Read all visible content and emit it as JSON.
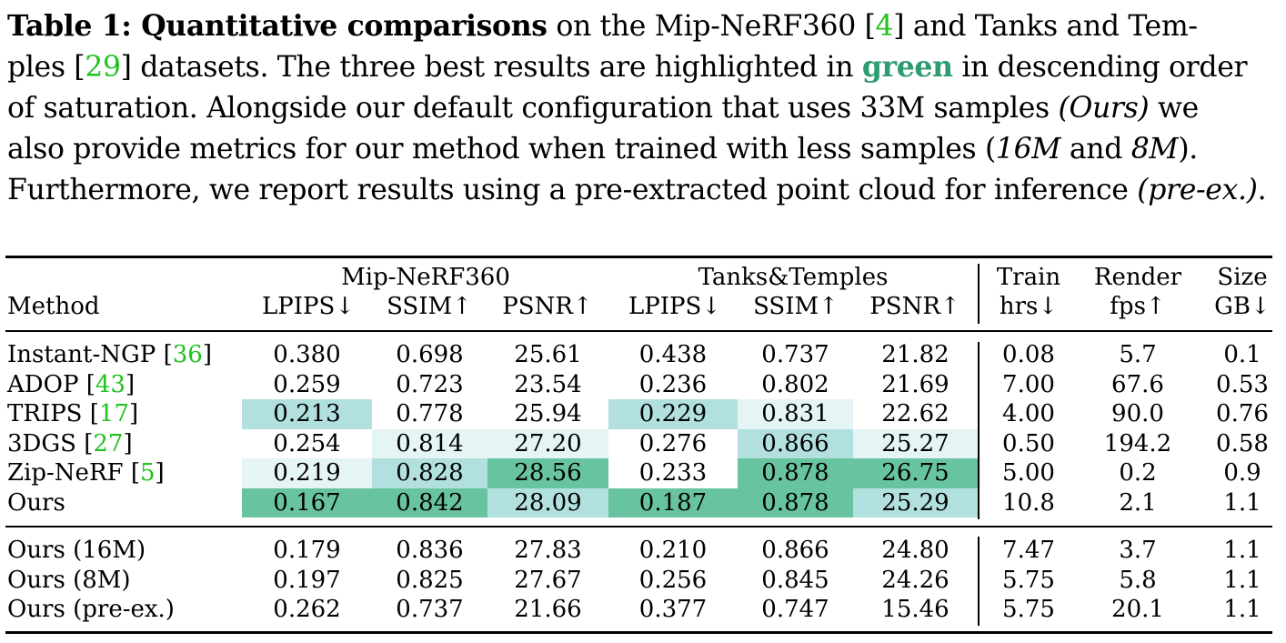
{
  "caption": {
    "lines": [
      [
        {
          "t": "Table 1: Quantitative comparisons",
          "s": "bold"
        },
        {
          "t": " on the Mip-NeRF360 ["
        },
        {
          "t": "4",
          "s": "ref"
        },
        {
          "t": "] and Tanks and Tem-"
        }
      ],
      [
        {
          "t": "ples ["
        },
        {
          "t": "29",
          "s": "ref"
        },
        {
          "t": "] datasets. The three best results are highlighted in "
        },
        {
          "t": "green",
          "s": "greenword"
        },
        {
          "t": " in descending order"
        }
      ],
      [
        {
          "t": "of saturation. Alongside our default configuration that uses 33M samples "
        },
        {
          "t": "(Ours)",
          "s": "it"
        },
        {
          "t": " we"
        }
      ],
      [
        {
          "t": "also provide metrics for our method when trained with less samples ("
        },
        {
          "t": "16M",
          "s": "it"
        },
        {
          "t": " and "
        },
        {
          "t": "8M",
          "s": "it"
        },
        {
          "t": ")."
        }
      ],
      [
        {
          "t": "Furthermore, we report results using a pre-extracted point cloud for inference "
        },
        {
          "t": "(pre-ex.)",
          "s": "it"
        },
        {
          "t": "."
        }
      ]
    ]
  },
  "table": {
    "group_headers": {
      "mip": "Mip-NeRF360",
      "tanks": "Tanks&Temples",
      "train_top": "Train",
      "render_top": "Render",
      "size_top": "Size"
    },
    "column_headers": {
      "method": "Method",
      "mip_lpips": "LPIPS↓",
      "mip_ssim": "SSIM↑",
      "mip_psnr": "PSNR↑",
      "tt_lpips": "LPIPS↓",
      "tt_ssim": "SSIM↑",
      "tt_psnr": "PSNR↑",
      "train": "hrs↓",
      "render": "fps↑",
      "size": "GB↓"
    },
    "highlight_colors": {
      "first": "#68c4a0",
      "second": "#b2e0df",
      "third": "#e5f4f5"
    },
    "main_rows": [
      {
        "name": "Instant-NGP [",
        "ref": "36",
        "name_end": "]",
        "values": [
          "0.380",
          "0.698",
          "25.61",
          "0.438",
          "0.737",
          "21.82",
          "0.08",
          "5.7",
          "0.1"
        ],
        "hl": [
          "",
          "",
          "",
          "",
          "",
          "",
          "",
          "",
          ""
        ]
      },
      {
        "name": "ADOP [",
        "ref": "43",
        "name_end": "]",
        "values": [
          "0.259",
          "0.723",
          "23.54",
          "0.236",
          "0.802",
          "21.69",
          "7.00",
          "67.6",
          "0.53"
        ],
        "hl": [
          "",
          "",
          "",
          "",
          "",
          "",
          "",
          "",
          ""
        ]
      },
      {
        "name": "TRIPS [",
        "ref": "17",
        "name_end": "]",
        "values": [
          "0.213",
          "0.778",
          "25.94",
          "0.229",
          "0.831",
          "22.62",
          "4.00",
          "90.0",
          "0.76"
        ],
        "hl": [
          "second",
          "",
          "",
          "second",
          "third",
          "",
          "",
          "",
          ""
        ]
      },
      {
        "name": "3DGS [",
        "ref": "27",
        "name_end": "]",
        "values": [
          "0.254",
          "0.814",
          "27.20",
          "0.276",
          "0.866",
          "25.27",
          "0.50",
          "194.2",
          "0.58"
        ],
        "hl": [
          "",
          "third",
          "third",
          "",
          "second",
          "third",
          "",
          "",
          ""
        ]
      },
      {
        "name": "Zip-NeRF [",
        "ref": "5",
        "name_end": "]",
        "values": [
          "0.219",
          "0.828",
          "28.56",
          "0.233",
          "0.878",
          "26.75",
          "5.00",
          "0.2",
          "0.9"
        ],
        "hl": [
          "third",
          "second",
          "first",
          "",
          "first",
          "first",
          "",
          "",
          ""
        ]
      },
      {
        "name": "Ours",
        "ref": "",
        "name_end": "",
        "values": [
          "0.167",
          "0.842",
          "28.09",
          "0.187",
          "0.878",
          "25.29",
          "10.8",
          "2.1",
          "1.1"
        ],
        "hl": [
          "first",
          "first",
          "second",
          "first",
          "first",
          "second",
          "",
          "",
          ""
        ]
      }
    ],
    "extra_rows": [
      {
        "name": "Ours (16M)",
        "ref": "",
        "name_end": "",
        "values": [
          "0.179",
          "0.836",
          "27.83",
          "0.210",
          "0.866",
          "24.80",
          "7.47",
          "3.7",
          "1.1"
        ],
        "hl": [
          "",
          "",
          "",
          "",
          "",
          "",
          "",
          "",
          ""
        ]
      },
      {
        "name": "Ours (8M)",
        "ref": "",
        "name_end": "",
        "values": [
          "0.197",
          "0.825",
          "27.67",
          "0.256",
          "0.845",
          "24.26",
          "5.75",
          "5.8",
          "1.1"
        ],
        "hl": [
          "",
          "",
          "",
          "",
          "",
          "",
          "",
          "",
          ""
        ]
      },
      {
        "name": "Ours (pre-ex.)",
        "ref": "",
        "name_end": "",
        "values": [
          "0.262",
          "0.737",
          "21.66",
          "0.377",
          "0.747",
          "15.46",
          "5.75",
          "20.1",
          "1.1"
        ],
        "hl": [
          "",
          "",
          "",
          "",
          "",
          "",
          "",
          "",
          ""
        ]
      }
    ]
  }
}
